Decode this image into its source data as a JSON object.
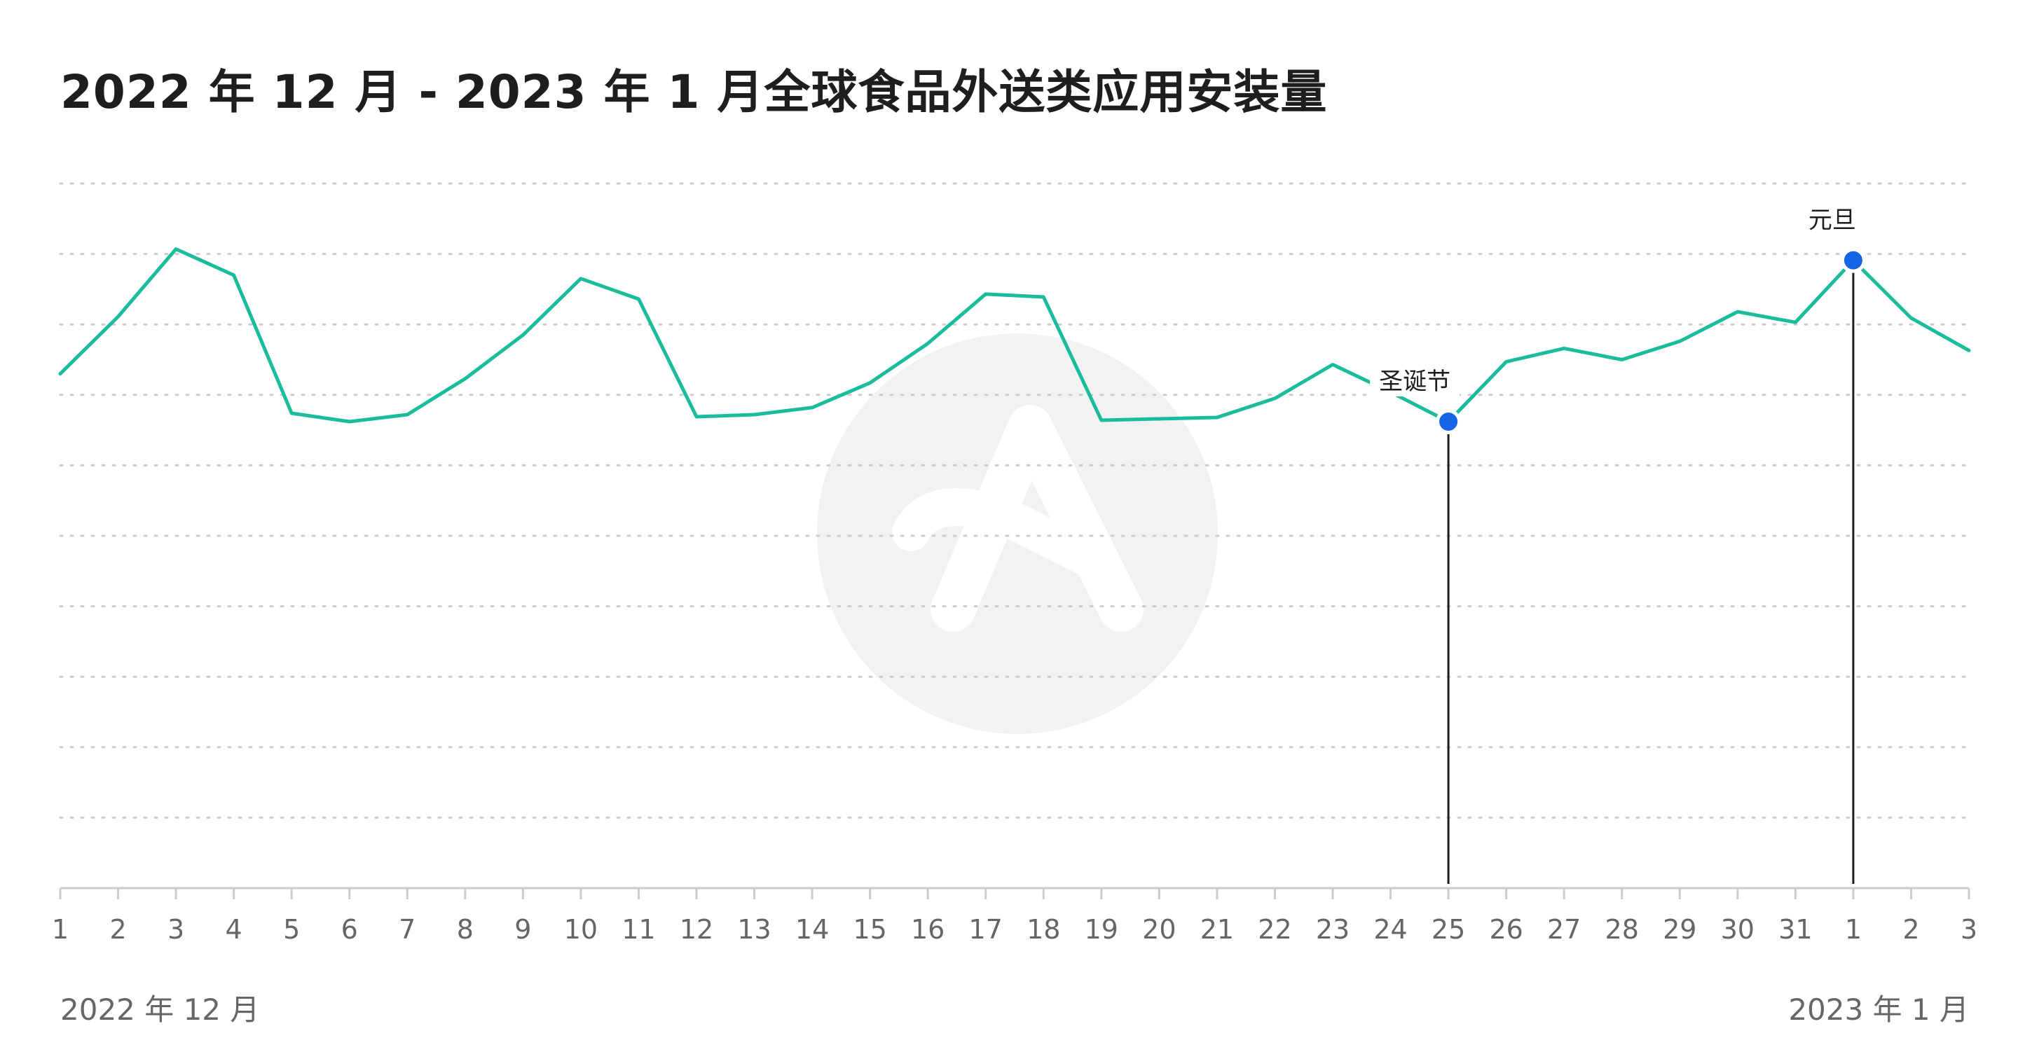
{
  "colors": {
    "line": "#1abc9c",
    "marker": "#1565e6",
    "grid": "#cccccc",
    "axis": "#cccccc",
    "watermark": "#f2f2f2"
  },
  "chart_data": {
    "type": "line",
    "title": "2022 年 12 月 - 2023 年 1 月全球食品外送类应用安装量",
    "xlabel": "",
    "ylabel": "",
    "grid": true,
    "ylim": [
      0,
      100
    ],
    "y_tick_labels_visible": false,
    "categories": [
      "1",
      "2",
      "3",
      "4",
      "5",
      "6",
      "7",
      "8",
      "9",
      "10",
      "11",
      "12",
      "13",
      "14",
      "15",
      "16",
      "17",
      "18",
      "19",
      "20",
      "21",
      "22",
      "23",
      "24",
      "25",
      "26",
      "27",
      "28",
      "29",
      "30",
      "31",
      "1",
      "2",
      "3"
    ],
    "period_labels": {
      "start": "2022 年 12 月",
      "end": "2023 年 1 月"
    },
    "series": [
      {
        "values": [
          73.0,
          81.1,
          90.7,
          87.0,
          67.4,
          66.2,
          67.2,
          72.3,
          78.5,
          86.5,
          83.6,
          66.9,
          67.2,
          68.2,
          71.7,
          77.3,
          84.3,
          83.9,
          66.4,
          66.6,
          66.8,
          69.5,
          74.3,
          70.4,
          66.2,
          74.7,
          76.6,
          75.0,
          77.6,
          81.8,
          80.3,
          89.1,
          80.9,
          76.3
        ]
      }
    ],
    "annotations": [
      {
        "index": 24,
        "label": "圣诞节"
      },
      {
        "index": 31,
        "label": "元旦"
      }
    ]
  }
}
